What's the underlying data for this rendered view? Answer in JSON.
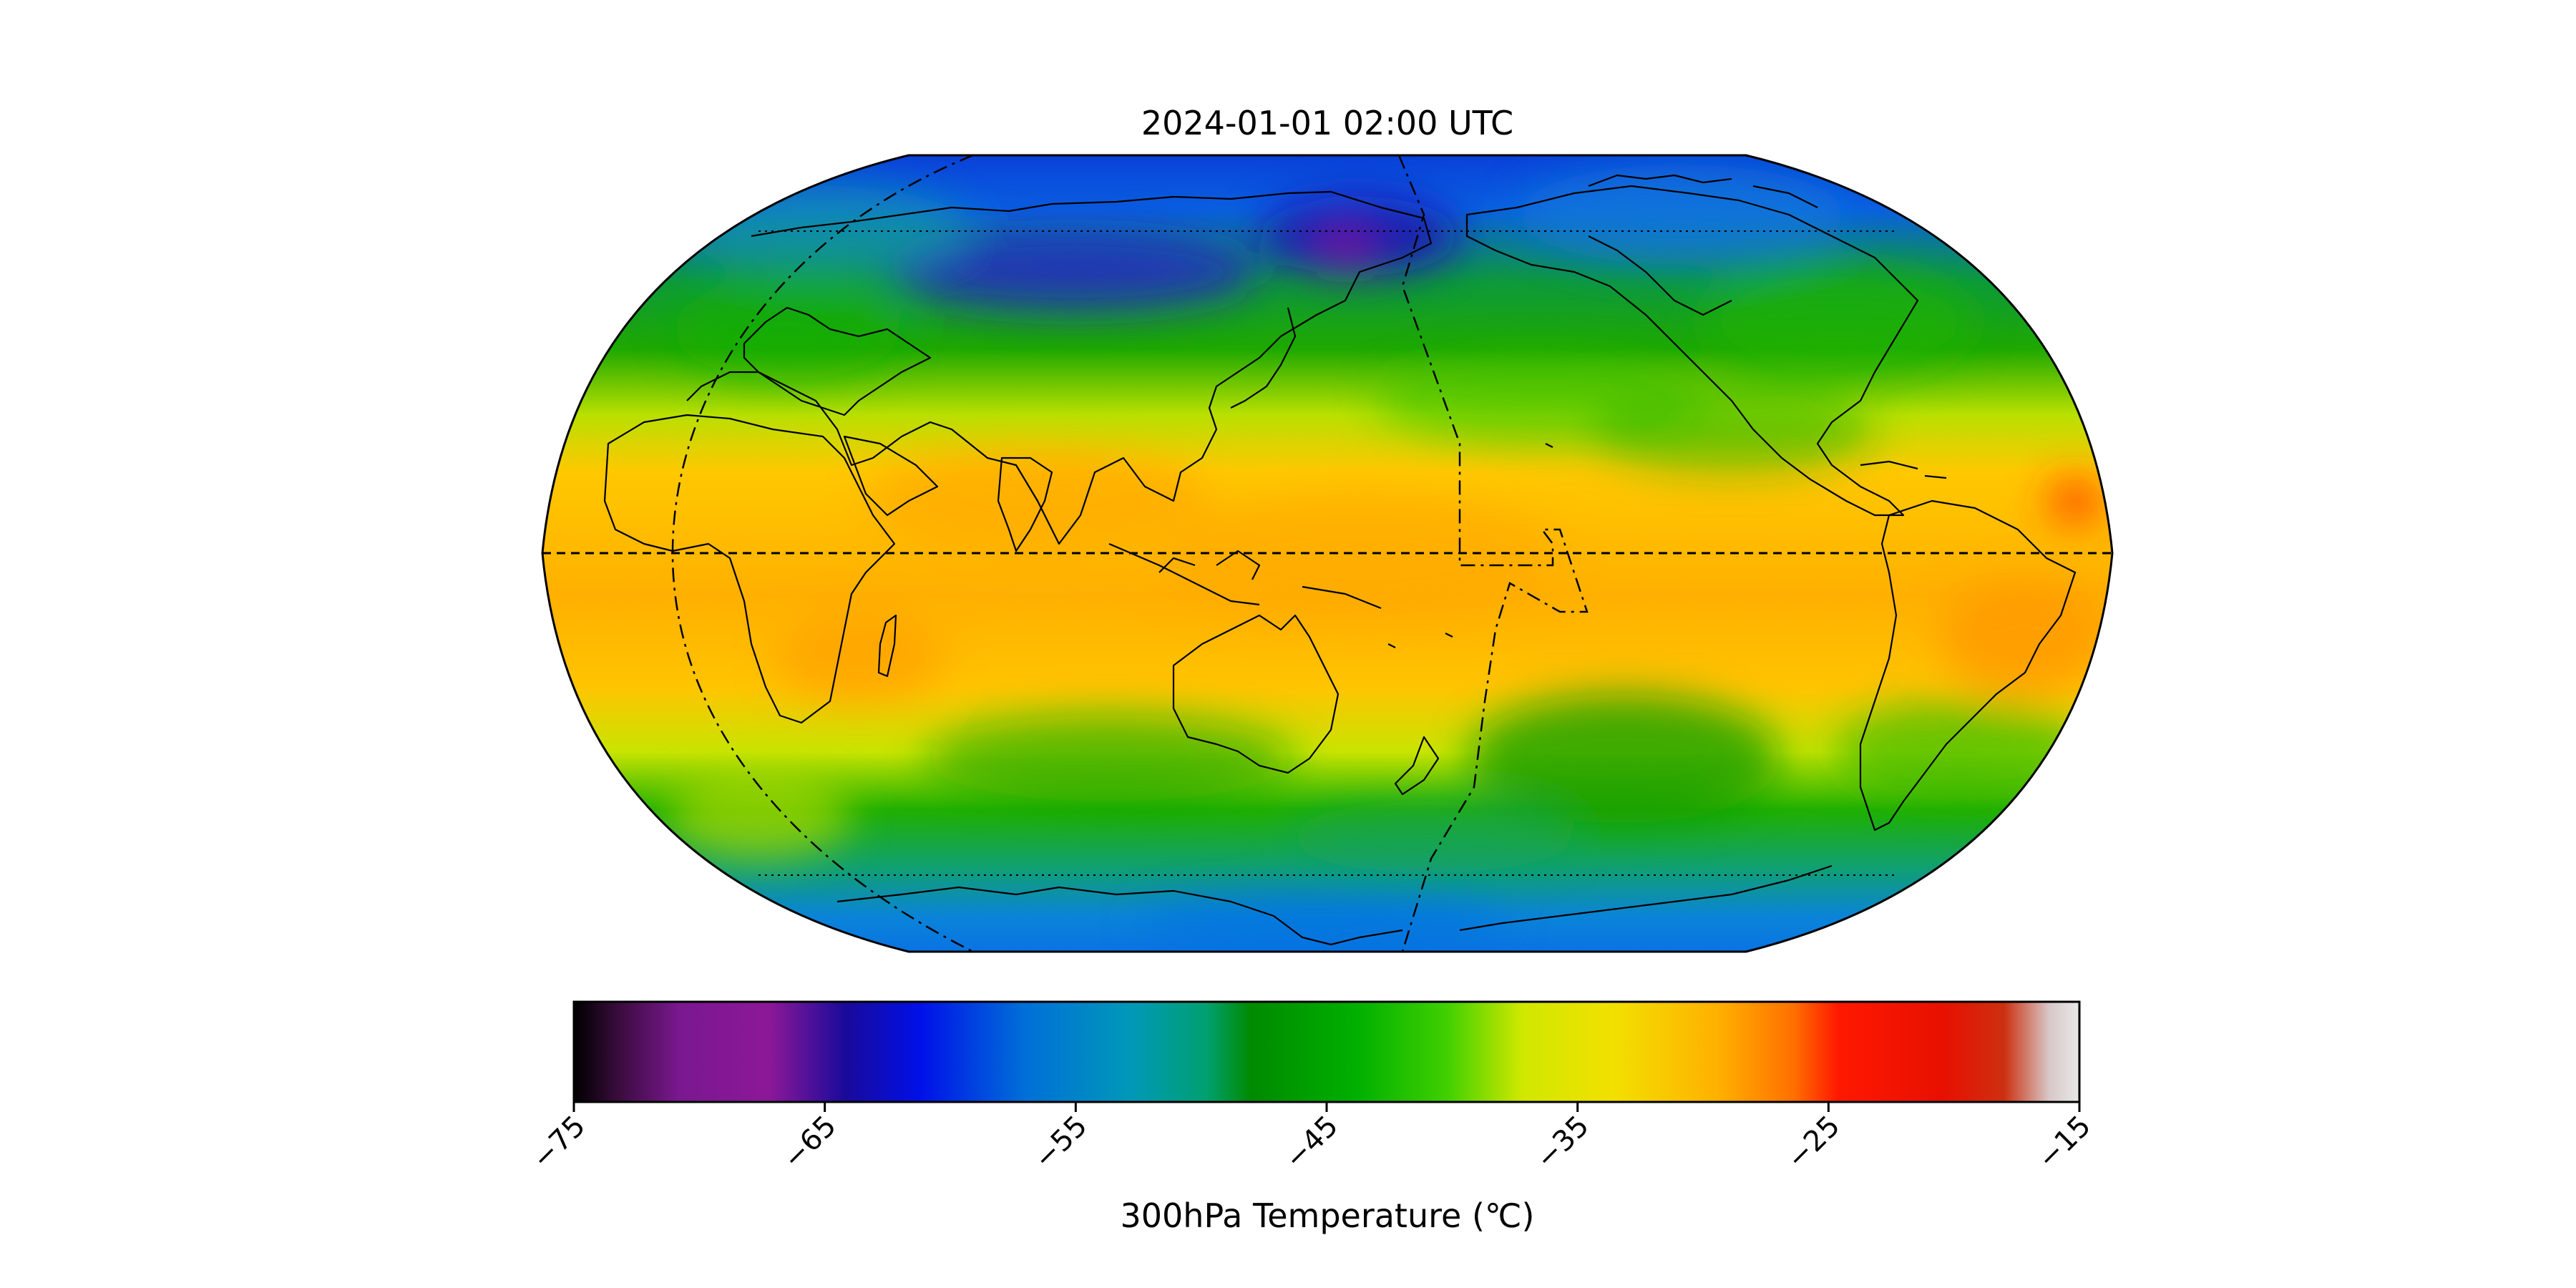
{
  "map": {
    "title": "2024-01-01 02:00 UTC",
    "projection": "robinson",
    "central_longitude": 150,
    "field": "temperature",
    "colorbar": {
      "label": "300hPa Temperature (℃)",
      "min": -75,
      "max": -15,
      "ticks": [
        "−75",
        "−65",
        "−55",
        "−45",
        "−35",
        "−25",
        "−15"
      ],
      "colormap": [
        [
          0.0,
          "#000000"
        ],
        [
          0.03,
          "#3a0c3e"
        ],
        [
          0.07,
          "#7a1890"
        ],
        [
          0.13,
          "#8c1898"
        ],
        [
          0.18,
          "#1a0a9a"
        ],
        [
          0.23,
          "#0010e8"
        ],
        [
          0.3,
          "#0070d8"
        ],
        [
          0.37,
          "#0098b8"
        ],
        [
          0.42,
          "#00a070"
        ],
        [
          0.45,
          "#008a00"
        ],
        [
          0.52,
          "#00b000"
        ],
        [
          0.58,
          "#40d000"
        ],
        [
          0.63,
          "#d0e800"
        ],
        [
          0.69,
          "#f2e000"
        ],
        [
          0.76,
          "#ffb000"
        ],
        [
          0.81,
          "#ff7000"
        ],
        [
          0.84,
          "#ff1800"
        ],
        [
          0.91,
          "#e81000"
        ],
        [
          0.95,
          "#cc3010"
        ],
        [
          0.98,
          "#d8c8c8"
        ],
        [
          1.0,
          "#e8e8e8"
        ]
      ]
    },
    "lines": {
      "equator": "dashed",
      "polar_circles": "dotted",
      "date_line": "dash-dot",
      "prime_meridian": "dash-dot"
    }
  }
}
